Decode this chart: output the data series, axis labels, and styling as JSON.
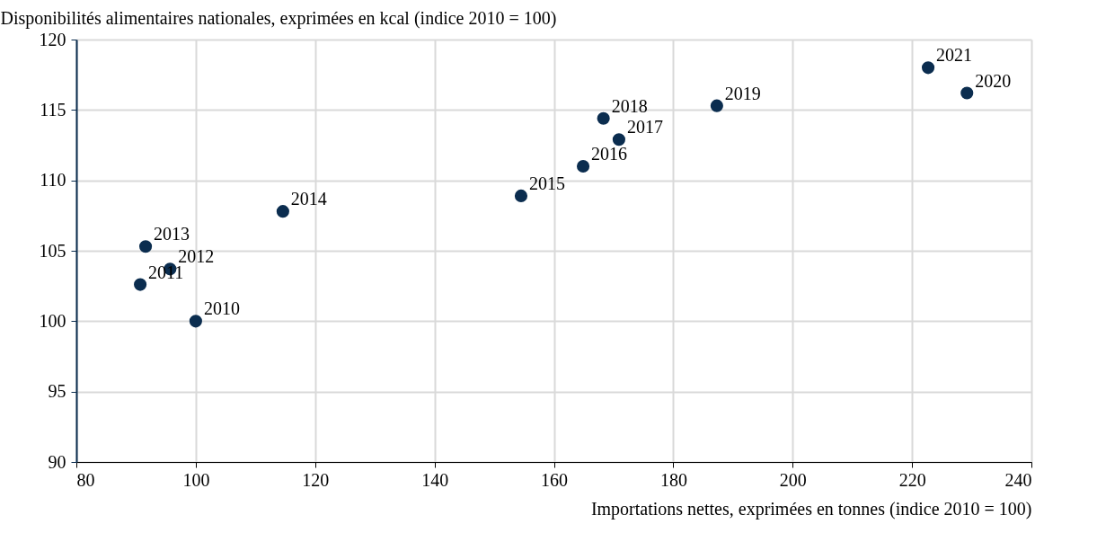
{
  "chart_data": {
    "type": "scatter",
    "xlabel": "Importations nettes, exprimées en tonnes (indice 2010 = 100)",
    "ylabel": "Disponibilités alimentaires nationales, exprimées en kcal (indice 2010 = 100)",
    "x": [
      100.0,
      90.7,
      95.7,
      91.6,
      114.6,
      154.5,
      164.9,
      170.9,
      168.3,
      187.3,
      229.2,
      222.7
    ],
    "series": [
      {
        "color": "#0b2d4f",
        "values": [
          100.0,
          102.6,
          103.7,
          105.3,
          107.8,
          108.9,
          111.0,
          112.9,
          114.4,
          115.3,
          116.2,
          118.0
        ]
      }
    ],
    "annotations": [
      {
        "text": "2010",
        "x": 100.0,
        "y": 100.0
      },
      {
        "text": "2011",
        "x": 90.7,
        "y": 102.6
      },
      {
        "text": "2012",
        "x": 95.7,
        "y": 103.7
      },
      {
        "text": "2013",
        "x": 91.6,
        "y": 105.3
      },
      {
        "text": "2014",
        "x": 114.6,
        "y": 107.8
      },
      {
        "text": "2015",
        "x": 154.5,
        "y": 108.9
      },
      {
        "text": "2016",
        "x": 164.9,
        "y": 111.0
      },
      {
        "text": "2017",
        "x": 170.9,
        "y": 112.9
      },
      {
        "text": "2018",
        "x": 168.3,
        "y": 114.4
      },
      {
        "text": "2019",
        "x": 187.3,
        "y": 115.3
      },
      {
        "text": "2020",
        "x": 229.2,
        "y": 116.2
      },
      {
        "text": "2021",
        "x": 222.7,
        "y": 118.0
      }
    ],
    "xlim": [
      80,
      240
    ],
    "xticks": [
      80,
      100,
      120,
      140,
      160,
      180,
      200,
      220,
      240
    ],
    "ylim": [
      90,
      120
    ],
    "yticks": [
      90,
      95,
      100,
      105,
      110,
      115,
      120
    ],
    "grid": true,
    "marker": "circle"
  }
}
